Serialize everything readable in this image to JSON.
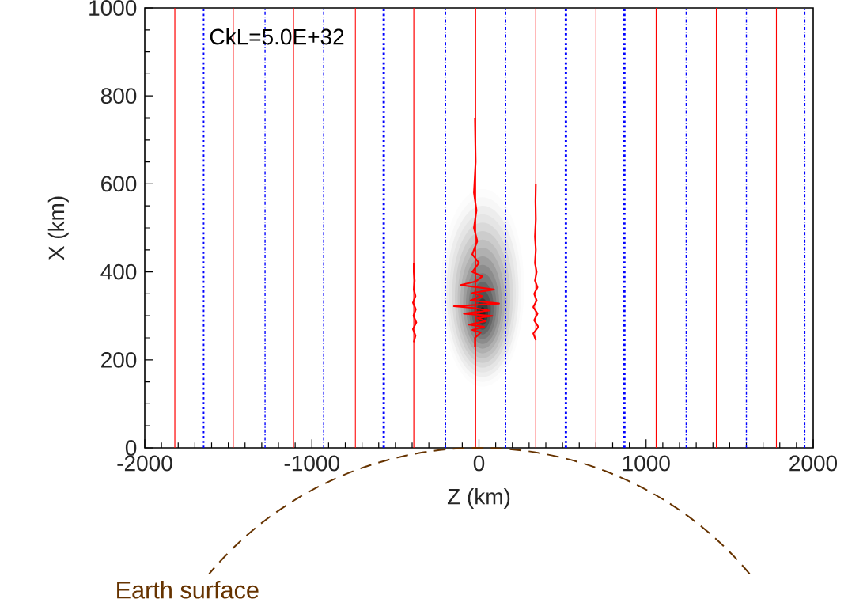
{
  "chart_data": {
    "type": "line",
    "xlabel": "Z (km)",
    "ylabel": "X (km)",
    "annotations": [
      "CkL=5.0E+32",
      "Earth surface"
    ],
    "xlim": [
      -2000,
      2000
    ],
    "ylim": [
      0,
      1000
    ],
    "xticks": [
      -2000,
      -1000,
      0,
      1000,
      2000
    ],
    "yticks": [
      0,
      200,
      400,
      600,
      800,
      1000
    ],
    "series": [
      {
        "color": "#ff0000",
        "x": [
          -24,
          -24,
          10,
          -40,
          30,
          -60,
          40,
          -10,
          80,
          -90,
          60,
          -30,
          -150,
          120,
          -50,
          20,
          -40,
          90,
          -110,
          -20,
          20,
          -40,
          0,
          -40,
          -10,
          -30,
          -15,
          -30,
          -20,
          -24
        ],
        "values": [
          230,
          250,
          262,
          268,
          275,
          280,
          288,
          295,
          300,
          305,
          312,
          318,
          322,
          328,
          335,
          345,
          352,
          360,
          370,
          378,
          390,
          400,
          420,
          440,
          470,
          500,
          540,
          580,
          650,
          750
        ]
      },
      {
        "color": "#ff0000",
        "x": [
          -390,
          -380,
          -395,
          -375,
          -392,
          -378,
          -395,
          -380,
          -390,
          -385,
          -390,
          -390
        ],
        "values": [
          240,
          255,
          270,
          285,
          300,
          315,
          330,
          345,
          360,
          380,
          400,
          420
        ]
      },
      {
        "color": "#ff0000",
        "x": [
          340,
          325,
          355,
          330,
          350,
          325,
          345,
          330,
          350,
          335,
          345,
          335,
          340,
          335,
          340,
          338,
          340
        ],
        "values": [
          245,
          260,
          275,
          290,
          305,
          320,
          335,
          350,
          365,
          380,
          400,
          420,
          450,
          480,
          520,
          560,
          600
        ]
      }
    ],
    "ref_lines": [
      {
        "axis": "x",
        "value": -1820,
        "color": "#ff0000",
        "line_style": "solid"
      },
      {
        "axis": "x",
        "value": -1470,
        "color": "#ff0000",
        "line_style": "solid"
      },
      {
        "axis": "x",
        "value": -1110,
        "color": "#ff0000",
        "line_style": "solid"
      },
      {
        "axis": "x",
        "value": -740,
        "color": "#ff0000",
        "line_style": "solid"
      },
      {
        "axis": "x",
        "value": -390,
        "color": "#ff0000",
        "line_style": "solid"
      },
      {
        "axis": "x",
        "value": -20,
        "color": "#ff0000",
        "line_style": "solid"
      },
      {
        "axis": "x",
        "value": 340,
        "color": "#ff0000",
        "line_style": "solid"
      },
      {
        "axis": "x",
        "value": 700,
        "color": "#ff0000",
        "line_style": "solid"
      },
      {
        "axis": "x",
        "value": 1060,
        "color": "#ff0000",
        "line_style": "solid"
      },
      {
        "axis": "x",
        "value": 1420,
        "color": "#ff0000",
        "line_style": "solid"
      },
      {
        "axis": "x",
        "value": 1780,
        "color": "#ff0000",
        "line_style": "solid"
      },
      {
        "axis": "x",
        "value": -1650,
        "color": "#0000ff",
        "line_style": "dotted"
      },
      {
        "axis": "x",
        "value": -1280,
        "color": "#0000ff",
        "line_style": "dashed"
      },
      {
        "axis": "x",
        "value": -930,
        "color": "#0000ff",
        "line_style": "dashed"
      },
      {
        "axis": "x",
        "value": -570,
        "color": "#0000ff",
        "line_style": "dotted"
      },
      {
        "axis": "x",
        "value": -200,
        "color": "#0000ff",
        "line_style": "dashed"
      },
      {
        "axis": "x",
        "value": 160,
        "color": "#0000ff",
        "line_style": "dashed"
      },
      {
        "axis": "x",
        "value": 520,
        "color": "#0000ff",
        "line_style": "dotted"
      },
      {
        "axis": "x",
        "value": 870,
        "color": "#0000ff",
        "line_style": "dotted"
      },
      {
        "axis": "x",
        "value": 1240,
        "color": "#0000ff",
        "line_style": "dashed"
      },
      {
        "axis": "x",
        "value": 1600,
        "color": "#0000ff",
        "line_style": "dashed"
      },
      {
        "axis": "x",
        "value": 1950,
        "color": "#0000ff",
        "line_style": "dashed"
      }
    ],
    "grid": false,
    "marker": "none",
    "line_style": "solid"
  }
}
